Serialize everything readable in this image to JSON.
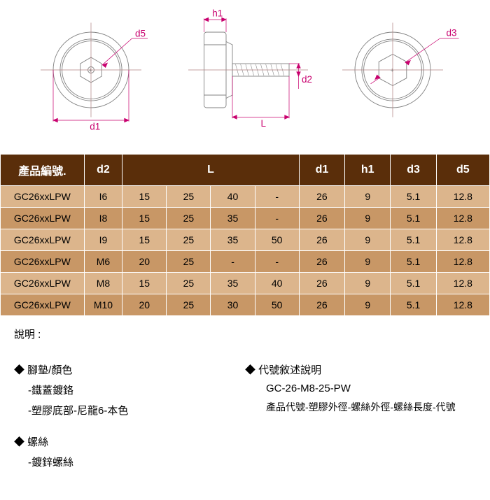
{
  "diagrams": {
    "labels": {
      "d5": "d5",
      "d1": "d1",
      "h1": "h1",
      "d2": "d2",
      "L": "L",
      "d3": "d3"
    },
    "label_color": "#c8006e",
    "line_color": "#c8006e",
    "shape_stroke": "#808080",
    "center_stroke": "#b08080"
  },
  "table": {
    "header_bg": "#5a2e0a",
    "header_fg": "#ffffff",
    "rowA_bg": "#dcb58c",
    "rowB_bg": "#c89766",
    "columns": {
      "product_no": "產品編號.",
      "d2": "d2",
      "L": "L",
      "d1": "d1",
      "h1": "h1",
      "d3": "d3",
      "d5": "d5"
    },
    "rows": [
      {
        "pn": "GC26xxLPW",
        "d2": "I6",
        "Ls": [
          "15",
          "25",
          "40",
          "-"
        ],
        "d1": "26",
        "h1": "9",
        "d3": "5.1",
        "d5": "12.8"
      },
      {
        "pn": "GC26xxLPW",
        "d2": "I8",
        "Ls": [
          "15",
          "25",
          "35",
          "-"
        ],
        "d1": "26",
        "h1": "9",
        "d3": "5.1",
        "d5": "12.8"
      },
      {
        "pn": "GC26xxLPW",
        "d2": "I9",
        "Ls": [
          "15",
          "25",
          "35",
          "50"
        ],
        "d1": "26",
        "h1": "9",
        "d3": "5.1",
        "d5": "12.8"
      },
      {
        "pn": "GC26xxLPW",
        "d2": "M6",
        "Ls": [
          "20",
          "25",
          "-",
          "-"
        ],
        "d1": "26",
        "h1": "9",
        "d3": "5.1",
        "d5": "12.8"
      },
      {
        "pn": "GC26xxLPW",
        "d2": "M8",
        "Ls": [
          "15",
          "25",
          "35",
          "40"
        ],
        "d1": "26",
        "h1": "9",
        "d3": "5.1",
        "d5": "12.8"
      },
      {
        "pn": "GC26xxLPW",
        "d2": "M10",
        "Ls": [
          "20",
          "25",
          "30",
          "50"
        ],
        "d1": "26",
        "h1": "9",
        "d3": "5.1",
        "d5": "12.8"
      }
    ]
  },
  "notes": {
    "title": "說明 :",
    "left": {
      "heading1": "◆ 腳墊/顏色",
      "item1a": "-鐵蓋鍍鉻",
      "item1b": "-塑膠底部-尼龍6-本色",
      "heading2": "◆ 螺絲",
      "item2a": "-鍍鋅螺絲"
    },
    "right": {
      "heading1": "◆ 代號敘述說明",
      "code": "GC-26-M8-25-PW",
      "desc": "產品代號-塑膠外徑-螺絲外徑-螺絲長度-代號"
    }
  }
}
